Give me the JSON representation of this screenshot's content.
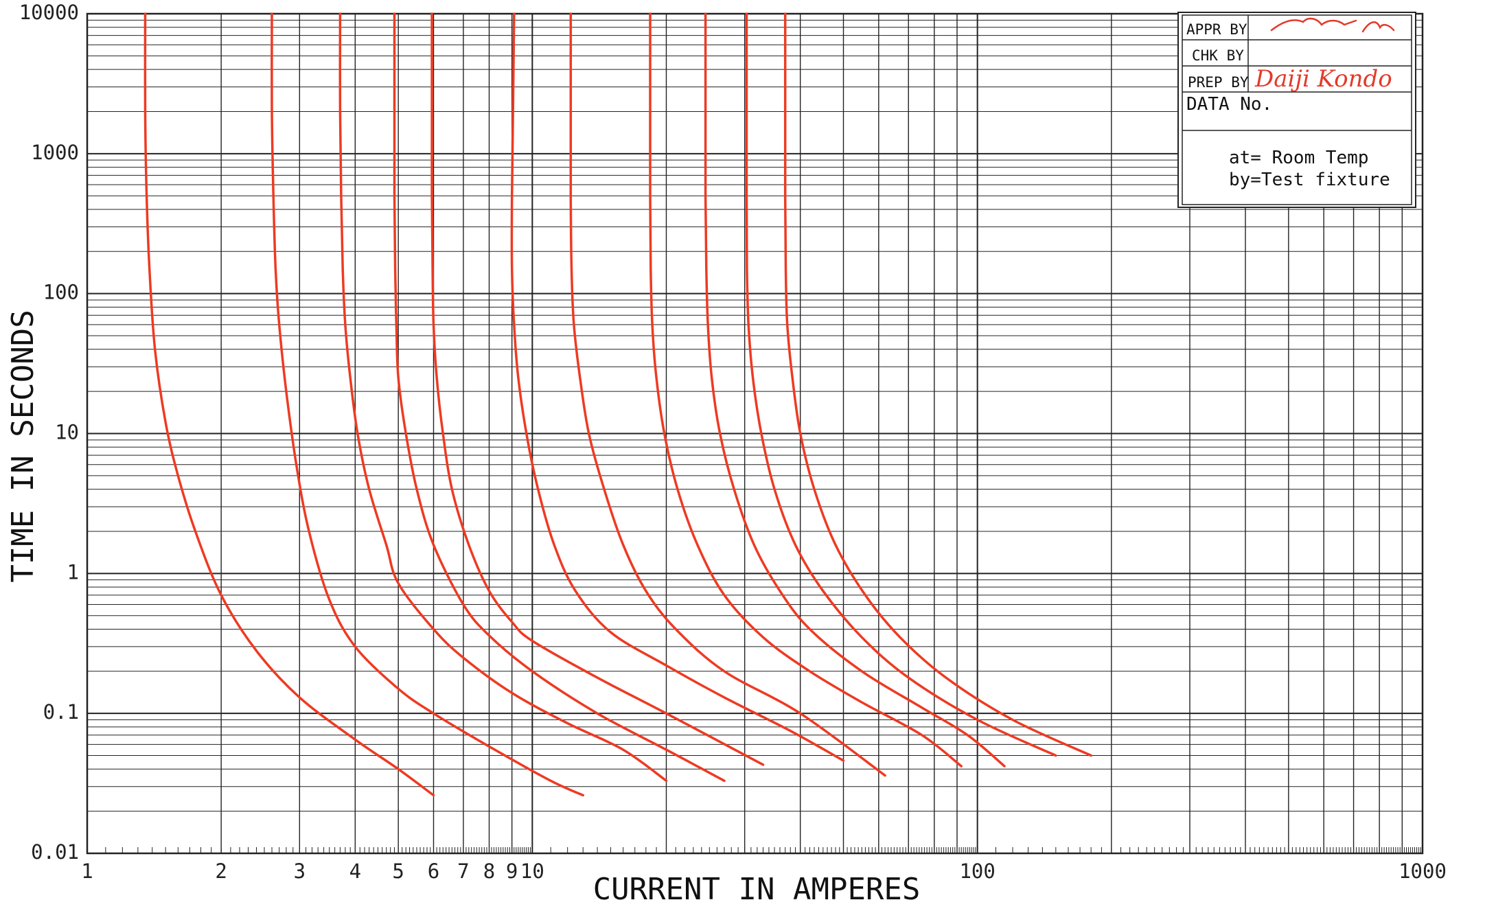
{
  "chart_data": {
    "type": "line",
    "xlabel": "CURRENT IN AMPERES",
    "ylabel": "TIME IN SECONDS",
    "x_scale": "log",
    "y_scale": "log",
    "xlim": [
      1,
      1000
    ],
    "ylim": [
      0.01,
      10000
    ],
    "x_tick_labels": [
      {
        "value": 1,
        "label": "1"
      },
      {
        "value": 2,
        "label": "2"
      },
      {
        "value": 3,
        "label": "3"
      },
      {
        "value": 4,
        "label": "4"
      },
      {
        "value": 5,
        "label": "5"
      },
      {
        "value": 6,
        "label": "6"
      },
      {
        "value": 7,
        "label": "7"
      },
      {
        "value": 8,
        "label": "8"
      },
      {
        "value": 9,
        "label": "9"
      },
      {
        "value": 10,
        "label": "10"
      },
      {
        "value": 100,
        "label": "100"
      },
      {
        "value": 1000,
        "label": "1000"
      }
    ],
    "y_tick_labels": [
      {
        "value": 10000,
        "label": "10000"
      },
      {
        "value": 1000,
        "label": "1000"
      },
      {
        "value": 100,
        "label": "100"
      },
      {
        "value": 10,
        "label": "10"
      },
      {
        "value": 1,
        "label": "1"
      },
      {
        "value": 0.1,
        "label": "0.1"
      },
      {
        "value": 0.01,
        "label": "0.01"
      }
    ],
    "grid": true,
    "line_color": "#ee3a22",
    "series": [
      {
        "points": [
          [
            1.35,
            10000
          ],
          [
            1.35,
            2000
          ],
          [
            1.36,
            500
          ],
          [
            1.38,
            150
          ],
          [
            1.42,
            40
          ],
          [
            1.5,
            12
          ],
          [
            1.6,
            5
          ],
          [
            1.75,
            2
          ],
          [
            2,
            0.7
          ],
          [
            2.4,
            0.28
          ],
          [
            3,
            0.13
          ],
          [
            4,
            0.065
          ],
          [
            5,
            0.04
          ],
          [
            6,
            0.026
          ]
        ]
      },
      {
        "points": [
          [
            2.6,
            10000
          ],
          [
            2.6,
            2000
          ],
          [
            2.62,
            500
          ],
          [
            2.65,
            150
          ],
          [
            2.7,
            60
          ],
          [
            2.8,
            20
          ],
          [
            2.95,
            6
          ],
          [
            3.15,
            2
          ],
          [
            3.5,
            0.65
          ],
          [
            4,
            0.3
          ],
          [
            5,
            0.15
          ],
          [
            6,
            0.1
          ],
          [
            8,
            0.058
          ],
          [
            11,
            0.033
          ],
          [
            13,
            0.026
          ]
        ]
      },
      {
        "points": [
          [
            3.7,
            10000
          ],
          [
            3.7,
            2000
          ],
          [
            3.72,
            500
          ],
          [
            3.75,
            150
          ],
          [
            3.8,
            60
          ],
          [
            3.9,
            25
          ],
          [
            4.05,
            10
          ],
          [
            4.3,
            4
          ],
          [
            4.7,
            1.6
          ],
          [
            5,
            0.85
          ],
          [
            6,
            0.4
          ],
          [
            7,
            0.25
          ],
          [
            9,
            0.14
          ],
          [
            12,
            0.085
          ],
          [
            16,
            0.055
          ],
          [
            20,
            0.033
          ]
        ]
      },
      {
        "points": [
          [
            4.9,
            10000
          ],
          [
            4.9,
            2000
          ],
          [
            4.9,
            500
          ],
          [
            4.92,
            150
          ],
          [
            4.95,
            60
          ],
          [
            5,
            25
          ],
          [
            5.2,
            10
          ],
          [
            5.5,
            4
          ],
          [
            6,
            1.6
          ],
          [
            7,
            0.6
          ],
          [
            8,
            0.36
          ],
          [
            10,
            0.2
          ],
          [
            14,
            0.1
          ],
          [
            20,
            0.055
          ],
          [
            27,
            0.033
          ]
        ]
      },
      {
        "points": [
          [
            5.95,
            10000
          ],
          [
            5.95,
            2000
          ],
          [
            5.95,
            500
          ],
          [
            5.97,
            150
          ],
          [
            6,
            60
          ],
          [
            6.1,
            25
          ],
          [
            6.3,
            10
          ],
          [
            6.6,
            4
          ],
          [
            7.2,
            1.6
          ],
          [
            8,
            0.75
          ],
          [
            9,
            0.45
          ],
          [
            10,
            0.33
          ],
          [
            14,
            0.18
          ],
          [
            20,
            0.1
          ],
          [
            33,
            0.043
          ]
        ]
      },
      {
        "points": [
          [
            9.1,
            10000
          ],
          [
            9.05,
            2000
          ],
          [
            9,
            500
          ],
          [
            9,
            150
          ],
          [
            9.1,
            60
          ],
          [
            9.3,
            25
          ],
          [
            9.7,
            10
          ],
          [
            10.3,
            4
          ],
          [
            11.2,
            1.6
          ],
          [
            12.5,
            0.75
          ],
          [
            15,
            0.38
          ],
          [
            20,
            0.22
          ],
          [
            27,
            0.13
          ],
          [
            38,
            0.075
          ],
          [
            50,
            0.046
          ]
        ]
      },
      {
        "points": [
          [
            12.2,
            10000
          ],
          [
            12.2,
            2000
          ],
          [
            12.2,
            500
          ],
          [
            12.25,
            150
          ],
          [
            12.4,
            60
          ],
          [
            12.8,
            25
          ],
          [
            13.4,
            10
          ],
          [
            14.5,
            4
          ],
          [
            16,
            1.6
          ],
          [
            18,
            0.75
          ],
          [
            21,
            0.4
          ],
          [
            27,
            0.2
          ],
          [
            40,
            0.1
          ],
          [
            62,
            0.036
          ]
        ]
      },
      {
        "points": [
          [
            18.4,
            10000
          ],
          [
            18.4,
            2000
          ],
          [
            18.4,
            500
          ],
          [
            18.45,
            150
          ],
          [
            18.6,
            60
          ],
          [
            19,
            25
          ],
          [
            19.8,
            10
          ],
          [
            21.2,
            4
          ],
          [
            23.5,
            1.6
          ],
          [
            27,
            0.7
          ],
          [
            33,
            0.35
          ],
          [
            42,
            0.2
          ],
          [
            55,
            0.12
          ],
          [
            75,
            0.07
          ],
          [
            92,
            0.042
          ]
        ]
      },
      {
        "points": [
          [
            24.5,
            10000
          ],
          [
            24.5,
            2000
          ],
          [
            24.5,
            500
          ],
          [
            24.6,
            150
          ],
          [
            24.8,
            60
          ],
          [
            25.3,
            25
          ],
          [
            26.4,
            10
          ],
          [
            28.4,
            4
          ],
          [
            31.5,
            1.6
          ],
          [
            36,
            0.75
          ],
          [
            42,
            0.4
          ],
          [
            55,
            0.2
          ],
          [
            75,
            0.11
          ],
          [
            95,
            0.07
          ],
          [
            115,
            0.042
          ]
        ]
      },
      {
        "points": [
          [
            30.3,
            10000
          ],
          [
            30.3,
            2000
          ],
          [
            30.3,
            500
          ],
          [
            30.35,
            150
          ],
          [
            30.6,
            60
          ],
          [
            31.3,
            25
          ],
          [
            32.7,
            10
          ],
          [
            35,
            4
          ],
          [
            39,
            1.6
          ],
          [
            45,
            0.75
          ],
          [
            55,
            0.35
          ],
          [
            70,
            0.18
          ],
          [
            100,
            0.09
          ],
          [
            150,
            0.05
          ]
        ]
      },
      {
        "points": [
          [
            37,
            10000
          ],
          [
            37,
            2000
          ],
          [
            37,
            500
          ],
          [
            37.1,
            150
          ],
          [
            37.4,
            60
          ],
          [
            38.4,
            25
          ],
          [
            40,
            10
          ],
          [
            43,
            4
          ],
          [
            48,
            1.6
          ],
          [
            56,
            0.7
          ],
          [
            67,
            0.35
          ],
          [
            85,
            0.18
          ],
          [
            120,
            0.09
          ],
          [
            180,
            0.05
          ]
        ]
      }
    ]
  },
  "title_block": {
    "appr_label": "APPR BY",
    "chk_label": "CHK BY",
    "prep_label": "PREP BY",
    "prep_signature": "Daiji Kondo",
    "appr_signature": "Masuta",
    "data_no_label": "DATA No.",
    "condition_at": "at= Room Temp",
    "condition_by": "by=Test fixture"
  }
}
